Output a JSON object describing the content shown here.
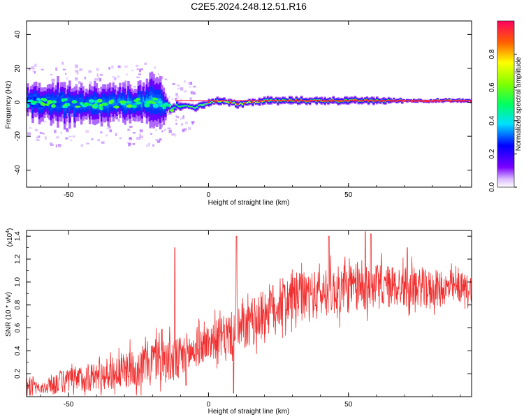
{
  "title": "C2E5.2024.248.12.51.R16",
  "chart_data": [
    {
      "type": "heatmap",
      "xlabel": "Height of straight line (km)",
      "ylabel": "Frequency (Hz)",
      "xlim": [
        -65,
        94
      ],
      "ylim": [
        -50,
        48
      ],
      "x_ticks": [
        "-50",
        "0",
        "50"
      ],
      "y_ticks": [
        "-40",
        "-20",
        "0",
        "20",
        "40"
      ],
      "colorbar": {
        "label": "Normalized spectral amplitude",
        "range": [
          0.0,
          1.0
        ],
        "ticks": [
          "0.0",
          "0.2",
          "0.4",
          "0.6",
          "0.8"
        ],
        "colormap": "rainbow"
      },
      "spectral_band": {
        "x": [
          -65,
          -55,
          -45,
          -35,
          -25,
          -18,
          -15,
          -10,
          -5,
          0,
          5,
          10,
          15,
          20,
          30,
          40,
          50,
          60,
          70,
          80,
          94
        ],
        "center_hz": [
          0,
          0,
          -2,
          -1,
          0,
          0,
          -3,
          -2,
          -3,
          0,
          1,
          -1,
          0,
          1,
          1,
          1,
          1,
          1,
          1,
          1,
          1
        ],
        "halfwidth_hz": [
          8,
          12,
          11,
          10,
          10,
          16,
          3,
          2,
          2,
          2,
          2,
          2,
          2,
          2,
          2,
          2,
          2,
          2,
          1,
          1,
          1
        ],
        "peak_amplitude": [
          0.25,
          0.28,
          0.3,
          0.33,
          0.35,
          0.35,
          0.5,
          0.55,
          0.6,
          0.65,
          0.7,
          0.72,
          0.75,
          0.8,
          0.85,
          0.88,
          0.9,
          0.92,
          0.95,
          0.97,
          0.98
        ]
      }
    },
    {
      "type": "line",
      "xlabel": "Height of straight line (km)",
      "ylabel": "SNR (10 * v/v)",
      "y_multiplier": "(x10",
      "y_multiplier_exp": "4",
      "xlim": [
        -65,
        94
      ],
      "ylim": [
        0.0,
        1.45
      ],
      "x_ticks": [
        "-50",
        "0",
        "50"
      ],
      "y_ticks": [
        "0.2",
        "0.4",
        "0.6",
        "0.8",
        "1.0",
        "1.2",
        "1.4"
      ],
      "color": "#f03030",
      "trend": {
        "x": [
          -65,
          -60,
          -55,
          -45,
          -35,
          -25,
          -18,
          -12,
          -8,
          -4,
          0,
          5,
          10,
          15,
          20,
          25,
          30,
          40,
          50,
          60,
          70,
          80,
          94
        ],
        "mean": [
          0.12,
          0.06,
          0.12,
          0.16,
          0.2,
          0.26,
          0.34,
          0.3,
          0.36,
          0.42,
          0.48,
          0.52,
          0.56,
          0.62,
          0.74,
          0.8,
          0.86,
          0.9,
          0.94,
          0.96,
          0.96,
          0.94,
          0.95
        ],
        "spread": [
          0.08,
          0.04,
          0.1,
          0.12,
          0.14,
          0.18,
          0.2,
          0.2,
          0.2,
          0.16,
          0.16,
          0.18,
          0.2,
          0.2,
          0.22,
          0.22,
          0.22,
          0.2,
          0.22,
          0.2,
          0.18,
          0.16,
          0.12
        ]
      },
      "peaks": [
        {
          "x": -12,
          "y": 1.3
        },
        {
          "x": 10,
          "y": 1.4
        },
        {
          "x": 43,
          "y": 1.4
        },
        {
          "x": 56,
          "y": 1.45
        },
        {
          "x": 58,
          "y": 1.42
        },
        {
          "x": 71,
          "y": 1.3
        }
      ],
      "dips": [
        {
          "x": 9,
          "y": 0.03
        },
        {
          "x": -8,
          "y": 0.1
        }
      ]
    }
  ]
}
